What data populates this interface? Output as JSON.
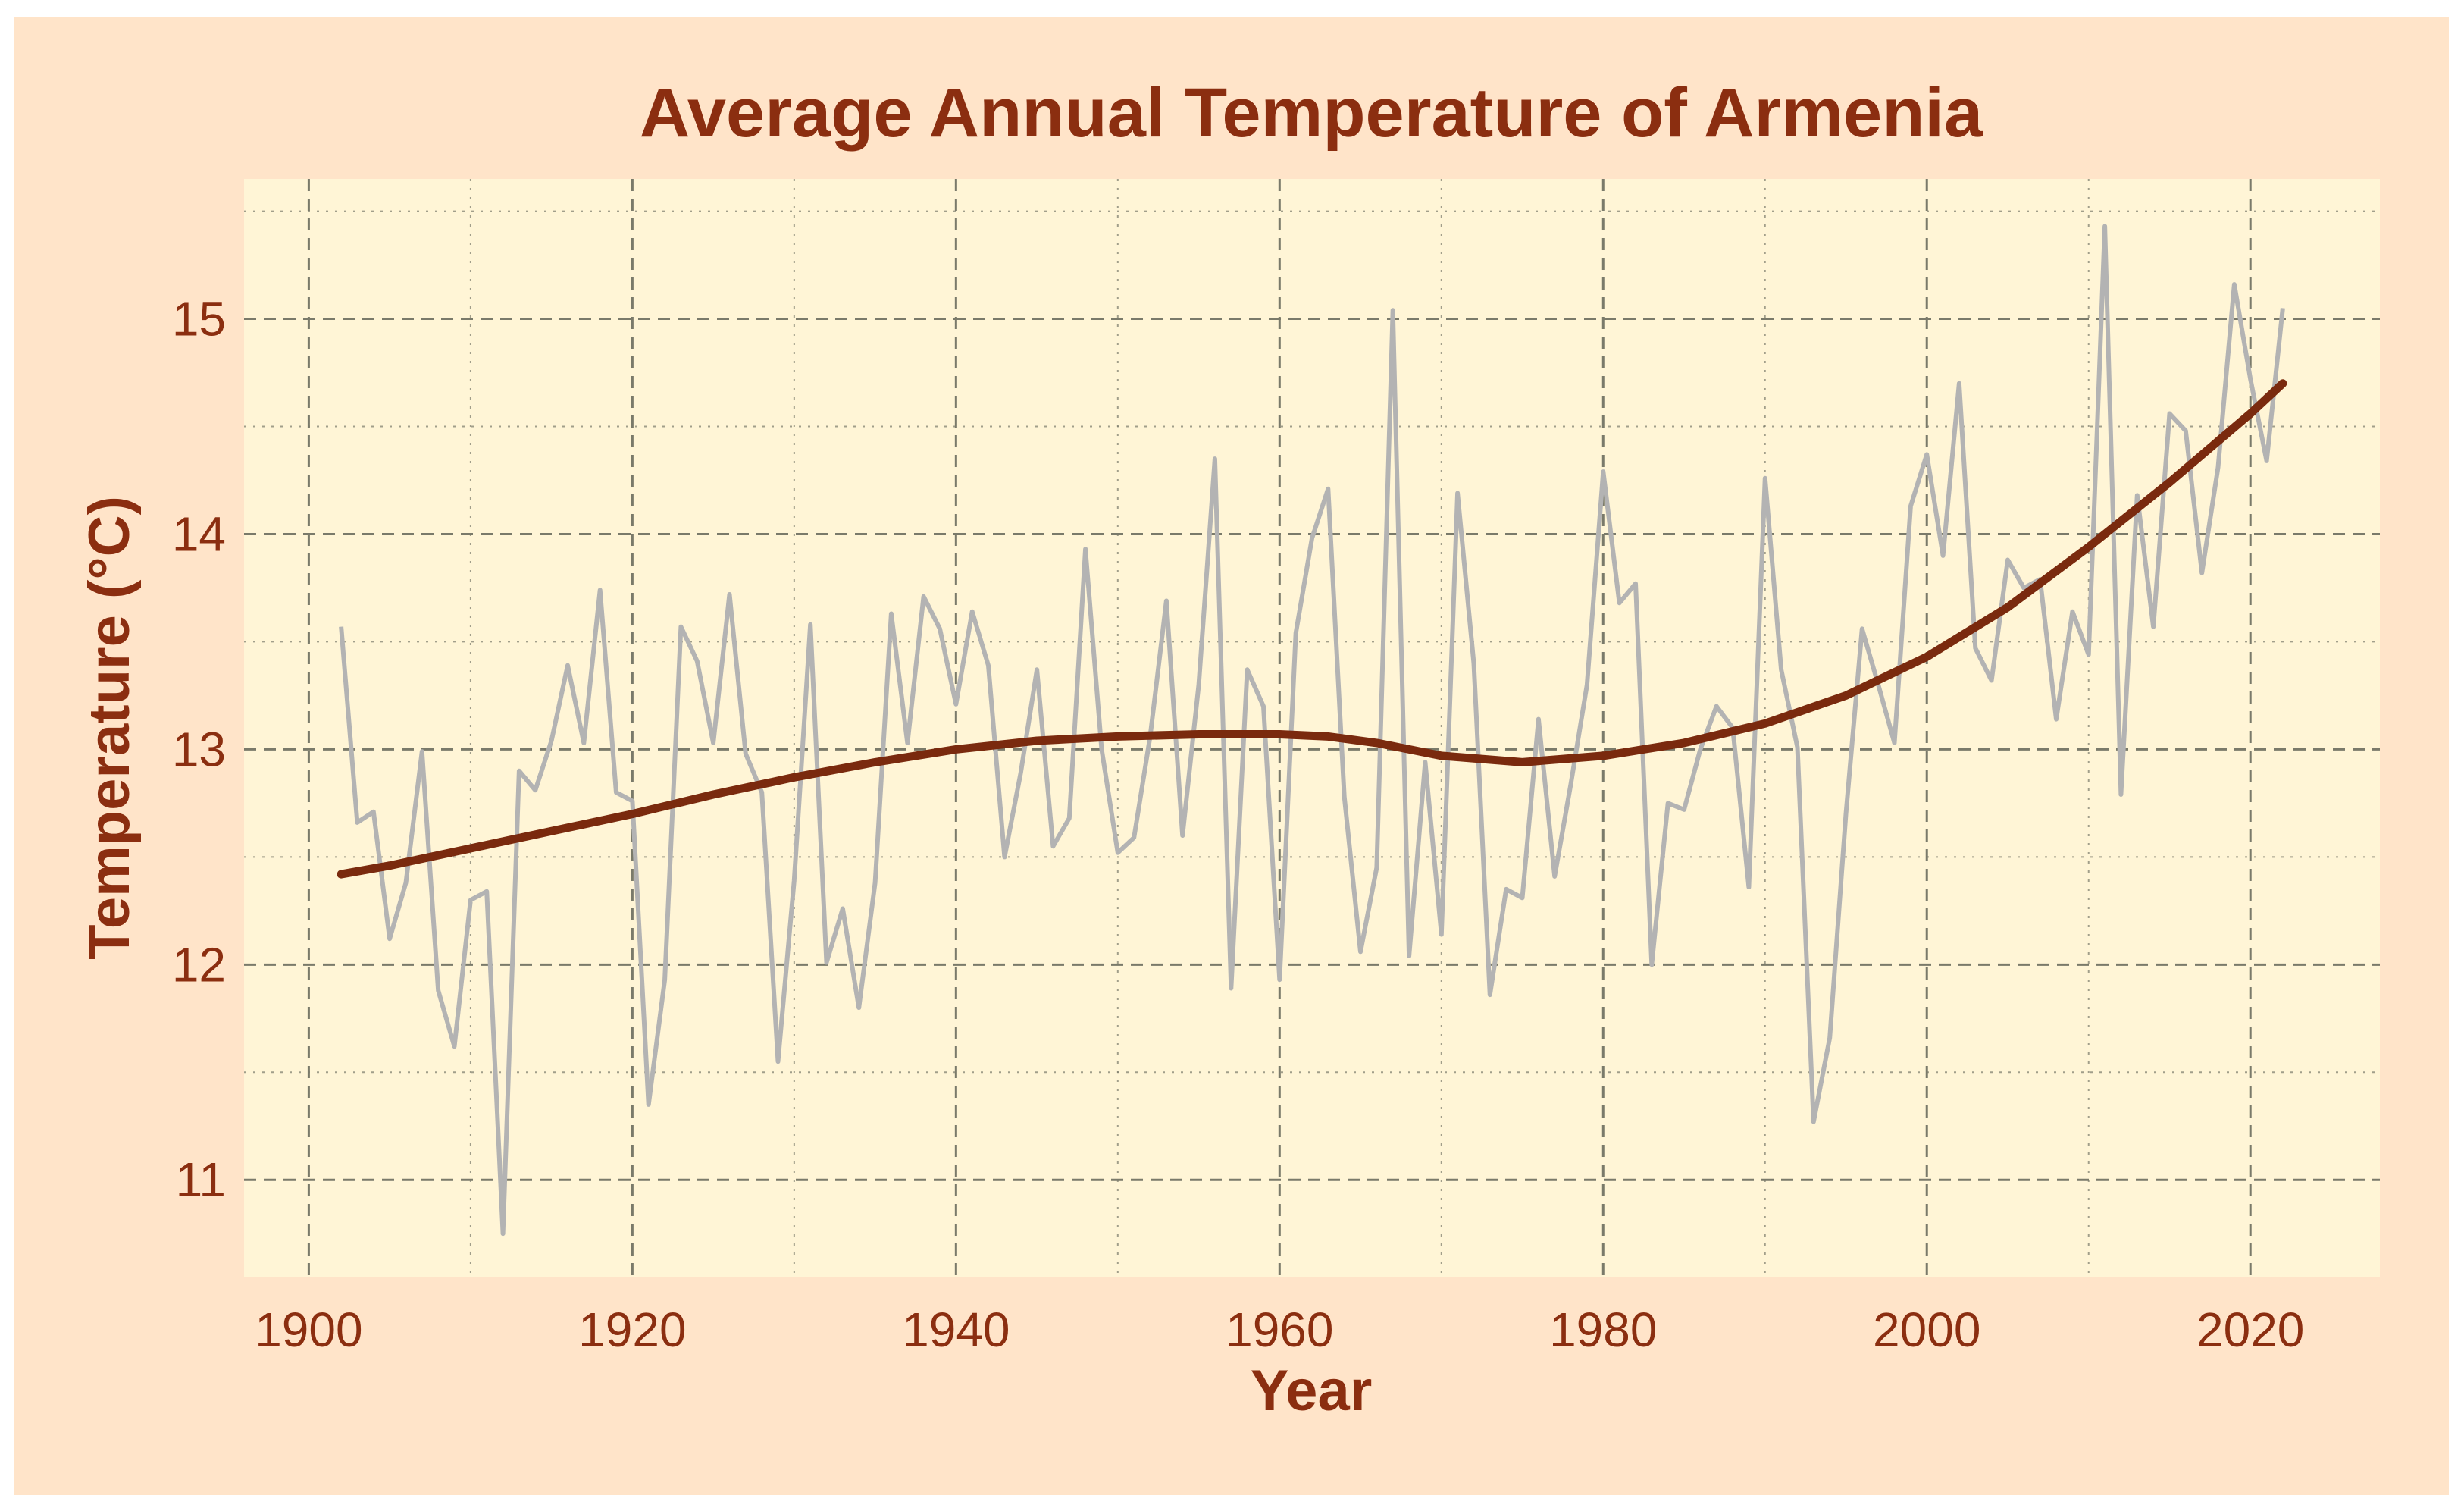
{
  "chart_data": {
    "type": "line",
    "title": "Average Annual Temperature of Armenia",
    "xlabel": "Year",
    "ylabel": "Temperature (°C)",
    "xlim": [
      1896,
      2028
    ],
    "ylim": [
      10.55,
      15.65
    ],
    "x_ticks": [
      1900,
      1920,
      1940,
      1960,
      1980,
      2000,
      2020
    ],
    "y_ticks": [
      11,
      12,
      13,
      14,
      15
    ],
    "x_minor_ticks": [
      1910,
      1930,
      1950,
      1970,
      1990,
      2010
    ],
    "y_minor_ticks": [
      11.5,
      12.5,
      13.5,
      14.5,
      15.5
    ],
    "grid": true,
    "legend": "none",
    "colors": {
      "background": "#ffe4c9",
      "panel": "#fff5d6",
      "text": "#8b2e10",
      "annual_line": "#b3b3b3",
      "trend_line": "#7a2a0e",
      "grid": "#7a7a6a"
    },
    "series": [
      {
        "kind": "annual",
        "x": [
          1902,
          1903,
          1904,
          1905,
          1906,
          1907,
          1908,
          1909,
          1910,
          1911,
          1912,
          1913,
          1914,
          1915,
          1916,
          1917,
          1918,
          1919,
          1920,
          1921,
          1922,
          1923,
          1924,
          1925,
          1926,
          1927,
          1928,
          1929,
          1930,
          1931,
          1932,
          1933,
          1934,
          1935,
          1936,
          1937,
          1938,
          1939,
          1940,
          1941,
          1942,
          1943,
          1944,
          1945,
          1946,
          1947,
          1948,
          1949,
          1950,
          1951,
          1952,
          1953,
          1954,
          1955,
          1956,
          1957,
          1958,
          1959,
          1960,
          1961,
          1962,
          1963,
          1964,
          1965,
          1966,
          1967,
          1968,
          1969,
          1970,
          1971,
          1972,
          1973,
          1974,
          1975,
          1976,
          1977,
          1978,
          1979,
          1980,
          1981,
          1982,
          1983,
          1984,
          1985,
          1986,
          1987,
          1988,
          1989,
          1990,
          1991,
          1992,
          1993,
          1994,
          1995,
          1996,
          1997,
          1998,
          1999,
          2000,
          2001,
          2002,
          2003,
          2004,
          2005,
          2006,
          2007,
          2008,
          2009,
          2010,
          2011,
          2012,
          2013,
          2014,
          2015,
          2016,
          2017,
          2018,
          2019,
          2020,
          2021,
          2022
        ],
        "values": [
          13.57,
          12.66,
          12.71,
          12.12,
          12.38,
          12.99,
          11.88,
          11.62,
          12.3,
          12.34,
          10.75,
          12.9,
          12.81,
          13.04,
          13.39,
          13.03,
          13.74,
          12.8,
          12.76,
          11.35,
          11.93,
          13.57,
          13.41,
          13.03,
          13.72,
          12.98,
          12.8,
          11.55,
          12.39,
          13.58,
          12.01,
          12.26,
          11.8,
          12.38,
          13.63,
          13.03,
          13.71,
          13.56,
          13.21,
          13.64,
          13.39,
          12.5,
          12.89,
          13.37,
          12.55,
          12.68,
          13.93,
          13.0,
          12.52,
          12.59,
          13.06,
          13.69,
          12.6,
          13.3,
          14.35,
          11.89,
          13.37,
          13.2,
          11.93,
          13.54,
          13.98,
          14.21,
          12.78,
          12.06,
          12.45,
          15.04,
          12.04,
          12.94,
          12.14,
          14.19,
          13.4,
          11.86,
          12.35,
          12.31,
          13.14,
          12.41,
          12.84,
          13.3,
          14.29,
          13.68,
          13.77,
          12.0,
          12.75,
          12.72,
          13.0,
          13.2,
          13.1,
          12.36,
          14.26,
          13.37,
          13.01,
          11.27,
          11.66,
          12.7,
          13.56,
          13.3,
          13.03,
          14.13,
          14.37,
          13.9,
          14.7,
          13.47,
          13.32,
          13.88,
          13.75,
          13.79,
          13.14,
          13.64,
          13.44,
          15.43,
          12.79,
          14.18,
          13.57,
          14.56,
          14.48,
          13.82,
          14.31,
          15.16,
          14.72,
          14.34,
          15.05
        ]
      },
      {
        "kind": "trend",
        "x": [
          1902,
          1905,
          1910,
          1915,
          1920,
          1925,
          1930,
          1935,
          1940,
          1945,
          1950,
          1955,
          1960,
          1963,
          1966,
          1970,
          1975,
          1980,
          1985,
          1990,
          1995,
          2000,
          2005,
          2010,
          2015,
          2020,
          2022
        ],
        "values": [
          12.42,
          12.46,
          12.54,
          12.62,
          12.7,
          12.79,
          12.87,
          12.94,
          13.0,
          13.04,
          13.06,
          13.07,
          13.07,
          13.06,
          13.03,
          12.97,
          12.94,
          12.97,
          13.03,
          13.12,
          13.25,
          13.43,
          13.66,
          13.94,
          14.24,
          14.56,
          14.7
        ]
      }
    ]
  }
}
